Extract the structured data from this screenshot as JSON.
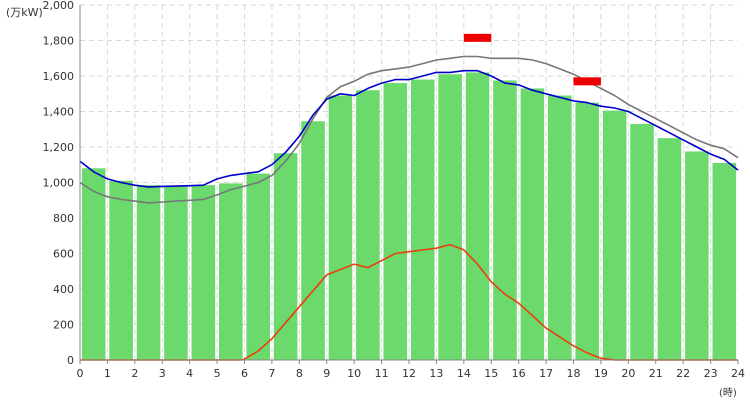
{
  "chart_data": {
    "type": "bar",
    "ylabel": "(万kW)",
    "xlabel": "(時)",
    "xlim": [
      0,
      24
    ],
    "ylim": [
      0,
      2000
    ],
    "x_ticks": [
      0,
      1,
      2,
      3,
      4,
      5,
      6,
      7,
      8,
      9,
      10,
      11,
      12,
      13,
      14,
      15,
      16,
      17,
      18,
      19,
      20,
      21,
      22,
      23,
      24
    ],
    "y_ticks": [
      0,
      200,
      400,
      600,
      800,
      1000,
      1200,
      1400,
      1600,
      1800,
      2000
    ],
    "y_tick_labels": [
      "0",
      "200",
      "400",
      "600",
      "800",
      "1,000",
      "1,200",
      "1,400",
      "1,600",
      "1,800",
      "2,000"
    ],
    "grid": true,
    "colors": {
      "bars": "#6cd96c",
      "blue_line": "#0000cc",
      "gray_line": "#777777",
      "orange_line": "#e8410f",
      "markers": "#ee0000"
    },
    "hourly_bars": [
      1080,
      1010,
      985,
      980,
      985,
      995,
      1050,
      1165,
      1345,
      1490,
      1520,
      1560,
      1580,
      1610,
      1620,
      1575,
      1530,
      1490,
      1450,
      1405,
      1330,
      1250,
      1175,
      1110
    ],
    "blue_line": {
      "x": [
        0,
        0.5,
        1,
        1.5,
        2,
        2.5,
        3,
        3.5,
        4,
        4.5,
        5,
        5.5,
        6,
        6.5,
        7,
        7.5,
        8,
        8.5,
        9,
        9.5,
        10,
        10.5,
        11,
        11.5,
        12,
        12.5,
        13,
        13.5,
        14,
        14.5,
        15,
        15.5,
        16,
        16.5,
        17,
        17.5,
        18,
        18.5,
        19,
        19.5,
        20,
        20.5,
        21,
        21.5,
        22,
        22.5,
        23,
        23.5,
        24
      ],
      "y": [
        1120,
        1060,
        1020,
        1000,
        985,
        975,
        978,
        980,
        982,
        985,
        1020,
        1040,
        1050,
        1060,
        1100,
        1170,
        1260,
        1380,
        1470,
        1500,
        1490,
        1530,
        1560,
        1580,
        1580,
        1600,
        1620,
        1620,
        1630,
        1630,
        1600,
        1560,
        1550,
        1520,
        1500,
        1480,
        1460,
        1450,
        1430,
        1420,
        1400,
        1360,
        1320,
        1280,
        1240,
        1200,
        1160,
        1130,
        1070
      ]
    },
    "gray_line": {
      "x": [
        0,
        0.5,
        1,
        1.5,
        2,
        2.5,
        3,
        3.5,
        4,
        4.5,
        5,
        5.5,
        6,
        6.5,
        7,
        7.5,
        8,
        8.5,
        9,
        9.5,
        10,
        10.5,
        11,
        11.5,
        12,
        12.5,
        13,
        13.5,
        14,
        14.5,
        15,
        15.5,
        16,
        16.5,
        17,
        17.5,
        18,
        18.5,
        19,
        19.5,
        20,
        20.5,
        21,
        21.5,
        22,
        22.5,
        23,
        23.5,
        24
      ],
      "y": [
        1000,
        950,
        920,
        905,
        895,
        885,
        890,
        895,
        900,
        905,
        930,
        960,
        980,
        1000,
        1040,
        1120,
        1220,
        1360,
        1480,
        1540,
        1570,
        1610,
        1630,
        1640,
        1650,
        1670,
        1690,
        1700,
        1710,
        1710,
        1700,
        1700,
        1700,
        1690,
        1670,
        1640,
        1610,
        1570,
        1530,
        1490,
        1440,
        1400,
        1360,
        1320,
        1280,
        1240,
        1210,
        1190,
        1140
      ]
    },
    "orange_line": {
      "x": [
        0,
        5.9,
        6,
        6.5,
        7,
        7.5,
        8,
        8.5,
        9,
        9.5,
        10,
        10.5,
        11,
        11.5,
        12,
        12.5,
        13,
        13.5,
        14,
        14.5,
        15,
        15.5,
        16,
        16.5,
        17,
        17.5,
        18,
        18.5,
        19,
        19.5,
        20,
        24
      ],
      "y": [
        0,
        0,
        5,
        50,
        120,
        210,
        300,
        390,
        480,
        510,
        540,
        520,
        560,
        600,
        610,
        620,
        630,
        650,
        620,
        540,
        440,
        370,
        320,
        250,
        180,
        130,
        80,
        40,
        10,
        0,
        0,
        0
      ]
    },
    "markers": [
      {
        "x_start": 14.0,
        "x_end": 15.0,
        "y": 1815
      },
      {
        "x_start": 18.0,
        "x_end": 19.0,
        "y": 1570
      }
    ]
  }
}
